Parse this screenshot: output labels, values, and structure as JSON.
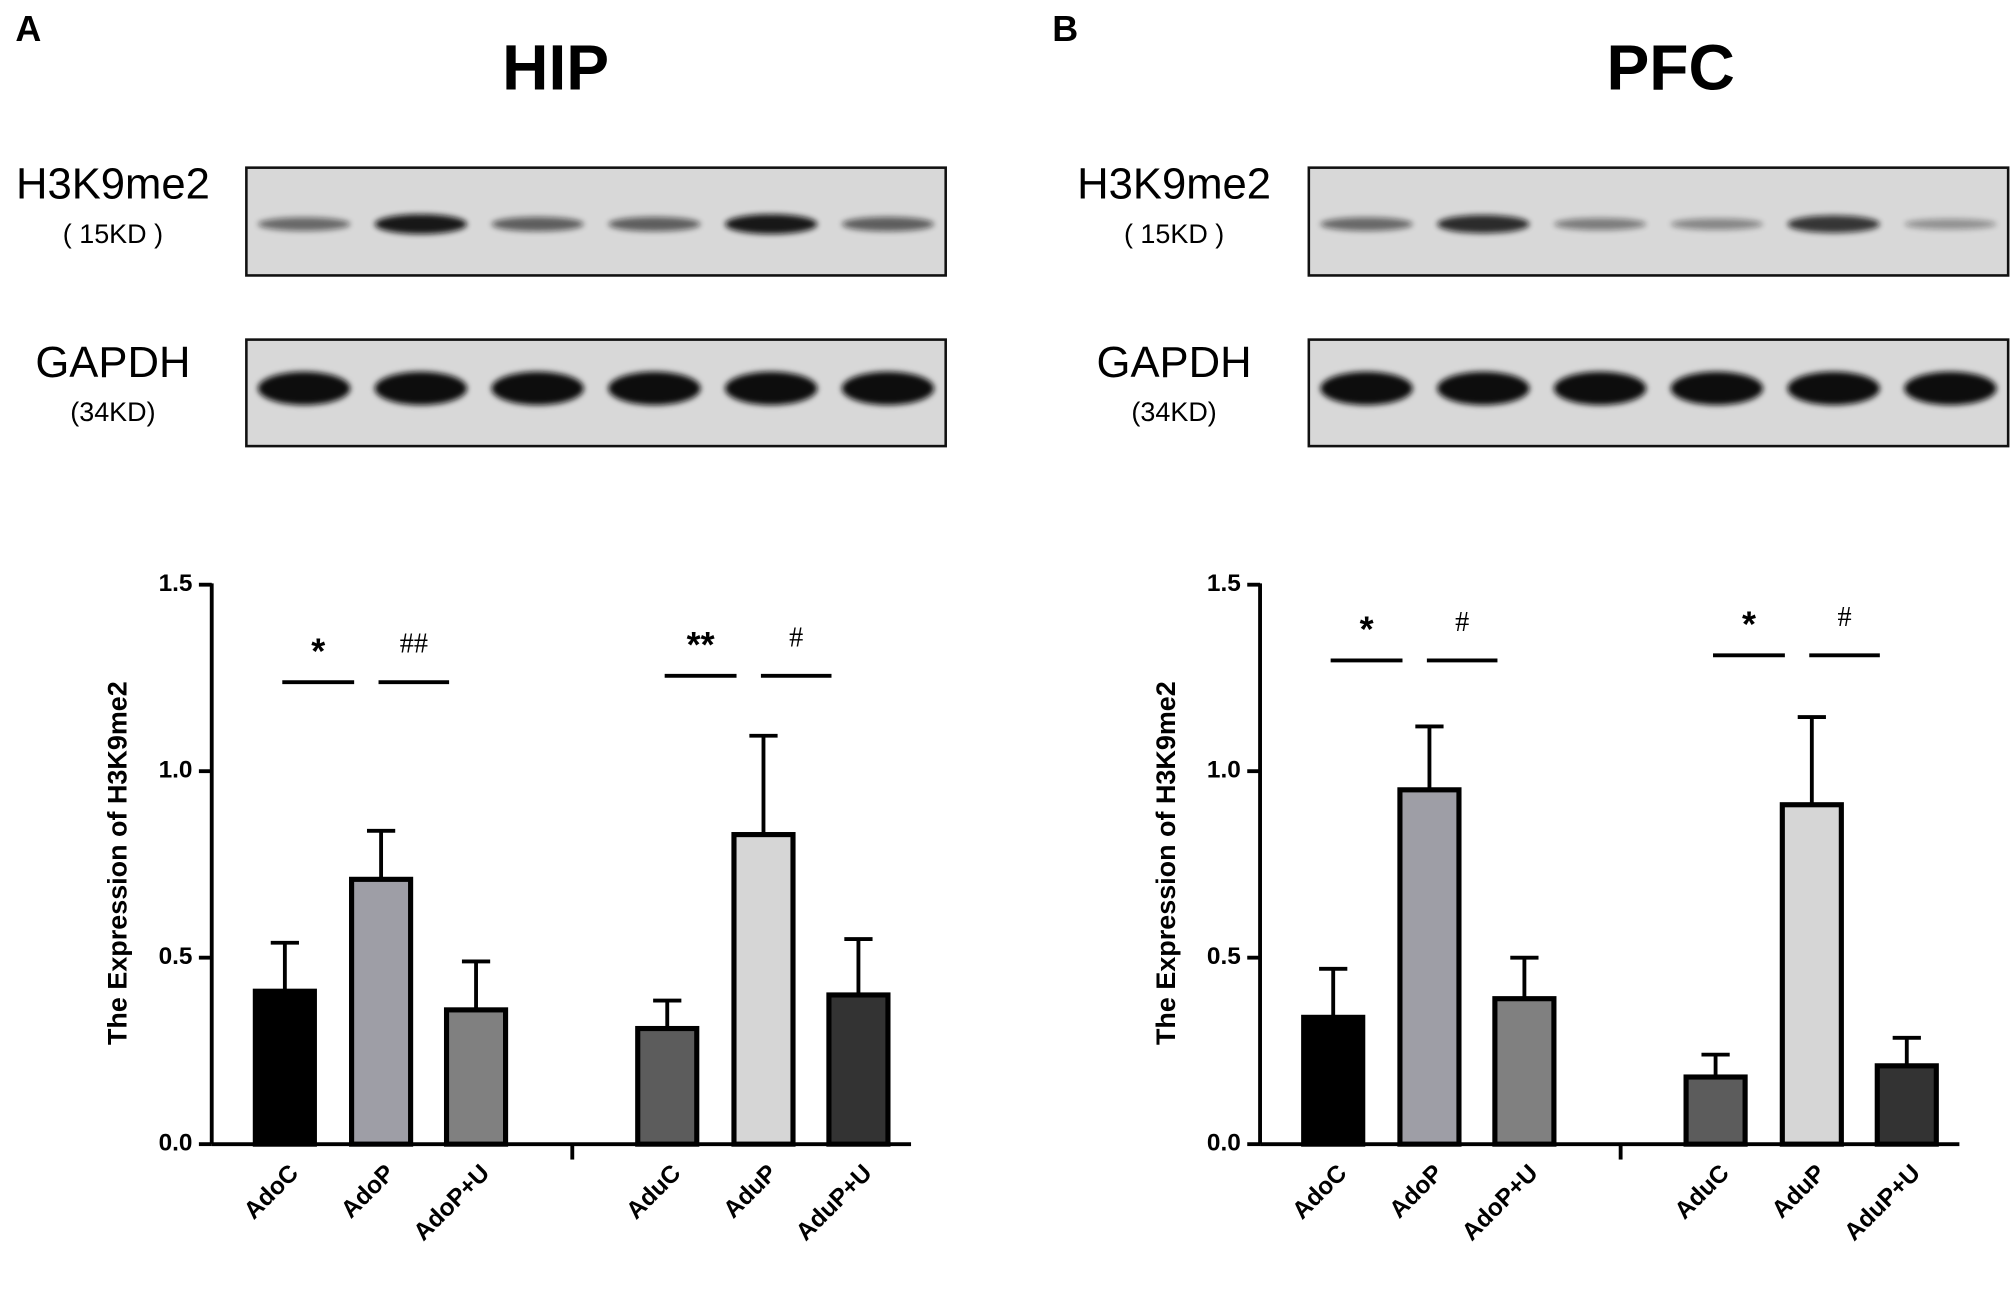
{
  "chart_data": [
    {
      "type": "bar",
      "panel_label": "A",
      "title": "HIP",
      "blots": [
        {
          "label": "H3K9me2",
          "size": "( 15KD )"
        },
        {
          "label": "GAPDH",
          "size": "(34KD)"
        }
      ],
      "ylabel": "The Expression of H3K9me2",
      "categories": [
        "AdoC",
        "AdoP",
        "AdoP+U",
        "AduC",
        "AduP",
        "AduP+U"
      ],
      "values": [
        0.41,
        0.71,
        0.36,
        0.31,
        0.83,
        0.4
      ],
      "errors": [
        0.13,
        0.13,
        0.13,
        0.075,
        0.265,
        0.15
      ],
      "colors": [
        "#000000",
        "#9e9ea6",
        "#808080",
        "#5c5c5c",
        "#d6d6d6",
        "#333333"
      ],
      "annotations": [
        "*",
        "##",
        "**",
        "#"
      ],
      "ylim": [
        0,
        1.5
      ],
      "yticks": [
        {
          "value": 0,
          "label": "0.0"
        },
        {
          "value": 0.5,
          "label": "0.5"
        },
        {
          "value": 1,
          "label": "1.0"
        },
        {
          "value": 1.5,
          "label": "1.5"
        }
      ]
    },
    {
      "type": "bar",
      "panel_label": "B",
      "title": "PFC",
      "blots": [
        {
          "label": "H3K9me2",
          "size": "( 15KD )"
        },
        {
          "label": "GAPDH",
          "size": "(34KD)"
        }
      ],
      "ylabel": "The Expression of H3K9me2",
      "categories": [
        "AdoC",
        "AdoP",
        "AdoP+U",
        "AduC",
        "AduP",
        "AduP+U"
      ],
      "values": [
        0.34,
        0.95,
        0.39,
        0.18,
        0.91,
        0.21
      ],
      "errors": [
        0.13,
        0.17,
        0.11,
        0.06,
        0.235,
        0.075
      ],
      "colors": [
        "#000000",
        "#9e9ea6",
        "#808080",
        "#5c5c5c",
        "#d6d6d6",
        "#333333"
      ],
      "annotations": [
        "*",
        "#",
        "*",
        "#"
      ],
      "ylim": [
        0,
        1.5
      ],
      "yticks": [
        {
          "value": 0,
          "label": "0.0"
        },
        {
          "value": 0.5,
          "label": "0.5"
        },
        {
          "value": 1,
          "label": "1.0"
        },
        {
          "value": 1.5,
          "label": "1.5"
        }
      ]
    }
  ]
}
